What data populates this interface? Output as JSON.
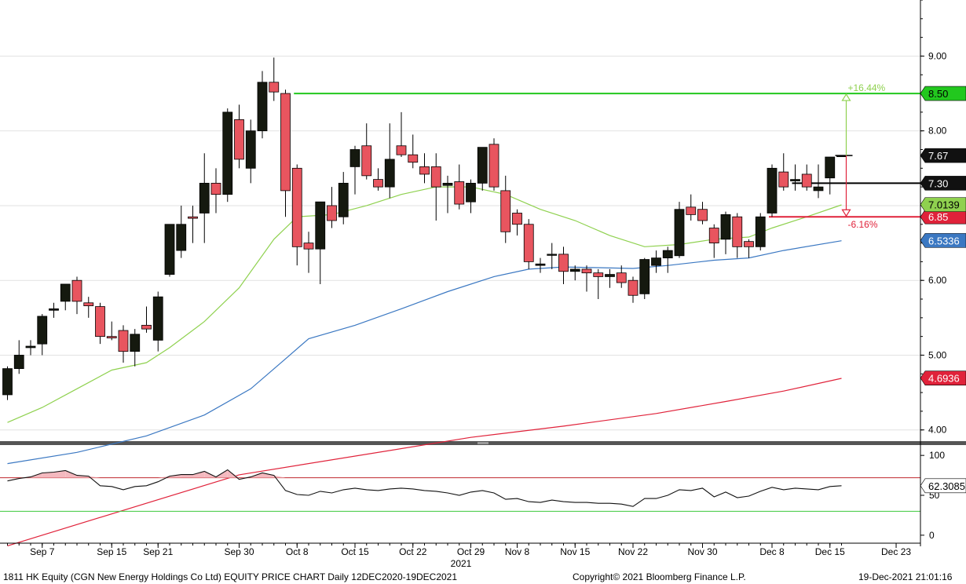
{
  "chart_data": {
    "type": "candlestick",
    "title": "1811 HK Equity (CGN New Energy Holdings Co Ltd) EQUITY PRICE CHART  Daily 12DEC2020-19DEC2021",
    "year_label": "2021",
    "x_labels": [
      "Sep 7",
      "Sep 15",
      "Sep 21",
      "Sep 30",
      "Oct 8",
      "Oct 15",
      "Oct 22",
      "Oct 29",
      "Nov 8",
      "Nov 15",
      "Nov 22",
      "Nov 30",
      "Dec 8",
      "Dec 15",
      "Dec 23"
    ],
    "x_label_dates": [
      "2021-09-07",
      "2021-09-15",
      "2021-09-21",
      "2021-09-30",
      "2021-10-08",
      "2021-10-15",
      "2021-10-22",
      "2021-10-29",
      "2021-11-08",
      "2021-11-15",
      "2021-11-22",
      "2021-11-30",
      "2021-12-08",
      "2021-12-15",
      "2021-12-23"
    ],
    "y_ticks": [
      4.0,
      5.0,
      6.0,
      7.0,
      8.0,
      9.0
    ],
    "ylim": [
      3.85,
      9.75
    ],
    "candles": [
      {
        "o": 4.47,
        "h": 4.85,
        "l": 4.4,
        "c": 4.82
      },
      {
        "o": 4.82,
        "h": 5.2,
        "l": 4.75,
        "c": 5.0
      },
      {
        "o": 5.1,
        "h": 5.2,
        "l": 5.0,
        "c": 5.12
      },
      {
        "o": 5.15,
        "h": 5.55,
        "l": 5.0,
        "c": 5.52
      },
      {
        "o": 5.6,
        "h": 5.7,
        "l": 5.5,
        "c": 5.62
      },
      {
        "o": 5.72,
        "h": 5.95,
        "l": 5.6,
        "c": 5.95
      },
      {
        "o": 6.0,
        "h": 6.05,
        "l": 5.55,
        "c": 5.72
      },
      {
        "o": 5.7,
        "h": 5.78,
        "l": 5.5,
        "c": 5.66
      },
      {
        "o": 5.65,
        "h": 5.7,
        "l": 5.15,
        "c": 5.25
      },
      {
        "o": 5.25,
        "h": 5.45,
        "l": 5.2,
        "c": 5.23
      },
      {
        "o": 5.33,
        "h": 5.4,
        "l": 4.9,
        "c": 5.05
      },
      {
        "o": 5.05,
        "h": 5.35,
        "l": 4.85,
        "c": 5.28
      },
      {
        "o": 5.4,
        "h": 5.65,
        "l": 5.3,
        "c": 5.35
      },
      {
        "o": 5.2,
        "h": 5.85,
        "l": 5.05,
        "c": 5.78
      },
      {
        "o": 6.08,
        "h": 6.75,
        "l": 6.05,
        "c": 6.75
      },
      {
        "o": 6.4,
        "h": 7.0,
        "l": 6.3,
        "c": 6.75
      },
      {
        "o": 6.85,
        "h": 7.0,
        "l": 6.5,
        "c": 6.83
      },
      {
        "o": 6.9,
        "h": 7.7,
        "l": 6.5,
        "c": 7.3
      },
      {
        "o": 7.3,
        "h": 7.5,
        "l": 6.9,
        "c": 7.15
      },
      {
        "o": 7.15,
        "h": 8.3,
        "l": 7.05,
        "c": 8.25
      },
      {
        "o": 8.15,
        "h": 8.35,
        "l": 7.5,
        "c": 7.62
      },
      {
        "o": 7.5,
        "h": 8.15,
        "l": 7.3,
        "c": 8.0
      },
      {
        "o": 8.0,
        "h": 8.8,
        "l": 7.9,
        "c": 8.65
      },
      {
        "o": 8.65,
        "h": 8.98,
        "l": 8.4,
        "c": 8.52
      },
      {
        "o": 8.5,
        "h": 8.55,
        "l": 6.85,
        "c": 7.2
      },
      {
        "o": 7.5,
        "h": 7.55,
        "l": 6.2,
        "c": 6.45
      },
      {
        "o": 6.5,
        "h": 6.65,
        "l": 6.1,
        "c": 6.42
      },
      {
        "o": 6.42,
        "h": 7.05,
        "l": 5.95,
        "c": 7.05
      },
      {
        "o": 7.0,
        "h": 7.25,
        "l": 6.7,
        "c": 6.8
      },
      {
        "o": 6.85,
        "h": 7.45,
        "l": 6.75,
        "c": 7.3
      },
      {
        "o": 7.52,
        "h": 7.8,
        "l": 7.15,
        "c": 7.75
      },
      {
        "o": 7.8,
        "h": 8.1,
        "l": 7.35,
        "c": 7.4
      },
      {
        "o": 7.35,
        "h": 7.5,
        "l": 7.2,
        "c": 7.25
      },
      {
        "o": 7.25,
        "h": 8.1,
        "l": 7.1,
        "c": 7.62
      },
      {
        "o": 7.8,
        "h": 8.25,
        "l": 7.65,
        "c": 7.68
      },
      {
        "o": 7.68,
        "h": 7.95,
        "l": 7.5,
        "c": 7.58
      },
      {
        "o": 7.52,
        "h": 7.7,
        "l": 7.3,
        "c": 7.42
      },
      {
        "o": 7.52,
        "h": 7.7,
        "l": 6.8,
        "c": 7.25
      },
      {
        "o": 7.27,
        "h": 7.4,
        "l": 6.9,
        "c": 7.3
      },
      {
        "o": 7.32,
        "h": 7.55,
        "l": 6.95,
        "c": 7.02
      },
      {
        "o": 7.05,
        "h": 7.35,
        "l": 6.9,
        "c": 7.3
      },
      {
        "o": 7.3,
        "h": 7.75,
        "l": 7.2,
        "c": 7.78
      },
      {
        "o": 7.82,
        "h": 7.9,
        "l": 7.2,
        "c": 7.25
      },
      {
        "o": 7.2,
        "h": 7.4,
        "l": 6.5,
        "c": 6.65
      },
      {
        "o": 6.9,
        "h": 6.95,
        "l": 6.6,
        "c": 6.75
      },
      {
        "o": 6.75,
        "h": 6.82,
        "l": 6.15,
        "c": 6.25
      },
      {
        "o": 6.2,
        "h": 6.3,
        "l": 6.1,
        "c": 6.22
      },
      {
        "o": 6.35,
        "h": 6.5,
        "l": 6.15,
        "c": 6.35
      },
      {
        "o": 6.35,
        "h": 6.45,
        "l": 5.95,
        "c": 6.12
      },
      {
        "o": 6.12,
        "h": 6.2,
        "l": 6.0,
        "c": 6.15
      },
      {
        "o": 6.15,
        "h": 6.2,
        "l": 5.85,
        "c": 6.1
      },
      {
        "o": 6.1,
        "h": 6.15,
        "l": 5.75,
        "c": 6.05
      },
      {
        "o": 6.05,
        "h": 6.15,
        "l": 5.9,
        "c": 6.08
      },
      {
        "o": 6.1,
        "h": 6.2,
        "l": 5.9,
        "c": 5.97
      },
      {
        "o": 6.0,
        "h": 6.05,
        "l": 5.7,
        "c": 5.8
      },
      {
        "o": 5.82,
        "h": 6.3,
        "l": 5.75,
        "c": 6.28
      },
      {
        "o": 6.2,
        "h": 6.4,
        "l": 6.1,
        "c": 6.3
      },
      {
        "o": 6.3,
        "h": 6.45,
        "l": 6.1,
        "c": 6.4
      },
      {
        "o": 6.33,
        "h": 7.05,
        "l": 6.3,
        "c": 6.95
      },
      {
        "o": 6.98,
        "h": 7.15,
        "l": 6.8,
        "c": 6.88
      },
      {
        "o": 6.95,
        "h": 7.05,
        "l": 6.75,
        "c": 6.8
      },
      {
        "o": 6.7,
        "h": 6.75,
        "l": 6.3,
        "c": 6.5
      },
      {
        "o": 6.55,
        "h": 6.92,
        "l": 6.35,
        "c": 6.88
      },
      {
        "o": 6.85,
        "h": 6.9,
        "l": 6.3,
        "c": 6.45
      },
      {
        "o": 6.52,
        "h": 6.55,
        "l": 6.3,
        "c": 6.45
      },
      {
        "o": 6.45,
        "h": 6.9,
        "l": 6.4,
        "c": 6.85
      },
      {
        "o": 6.9,
        "h": 7.55,
        "l": 6.85,
        "c": 7.5
      },
      {
        "o": 7.45,
        "h": 7.7,
        "l": 7.2,
        "c": 7.25
      },
      {
        "o": 7.33,
        "h": 7.55,
        "l": 7.2,
        "c": 7.35
      },
      {
        "o": 7.42,
        "h": 7.55,
        "l": 7.2,
        "c": 7.25
      },
      {
        "o": 7.2,
        "h": 7.55,
        "l": 7.1,
        "c": 7.25
      },
      {
        "o": 7.37,
        "h": 7.6,
        "l": 7.15,
        "c": 7.65
      },
      {
        "o": 7.67,
        "h": 7.67,
        "l": 7.67,
        "c": 7.67
      }
    ],
    "ma_series": [
      {
        "label": "7.0139",
        "color": "#8fd14f",
        "bg": "#8fd14f",
        "fg": "#000000",
        "points": [
          [
            0,
            4.1
          ],
          [
            3,
            4.3
          ],
          [
            6,
            4.55
          ],
          [
            9,
            4.8
          ],
          [
            12,
            4.9
          ],
          [
            14,
            5.1
          ],
          [
            17,
            5.45
          ],
          [
            20,
            5.9
          ],
          [
            23,
            6.55
          ],
          [
            25,
            6.85
          ],
          [
            28,
            6.88
          ],
          [
            31,
            7.0
          ],
          [
            34,
            7.15
          ],
          [
            37,
            7.25
          ],
          [
            40,
            7.25
          ],
          [
            43,
            7.15
          ],
          [
            46,
            6.95
          ],
          [
            49,
            6.8
          ],
          [
            52,
            6.6
          ],
          [
            55,
            6.45
          ],
          [
            58,
            6.48
          ],
          [
            61,
            6.55
          ],
          [
            64,
            6.58
          ],
          [
            66,
            6.7
          ],
          [
            69,
            6.85
          ],
          [
            72,
            7.01
          ]
        ]
      },
      {
        "label": "6.5336",
        "color": "#3b78c2",
        "bg": "#3b78c2",
        "fg": "#ffffff",
        "points": [
          [
            0,
            3.55
          ],
          [
            6,
            3.7
          ],
          [
            12,
            3.92
          ],
          [
            17,
            4.2
          ],
          [
            21,
            4.55
          ],
          [
            24,
            4.95
          ],
          [
            26,
            5.22
          ],
          [
            30,
            5.4
          ],
          [
            34,
            5.62
          ],
          [
            38,
            5.85
          ],
          [
            42,
            6.05
          ],
          [
            45,
            6.15
          ],
          [
            48,
            6.18
          ],
          [
            51,
            6.17
          ],
          [
            54,
            6.16
          ],
          [
            57,
            6.2
          ],
          [
            61,
            6.27
          ],
          [
            64,
            6.3
          ],
          [
            67,
            6.4
          ],
          [
            72,
            6.53
          ]
        ]
      },
      {
        "label": "4.6936",
        "color": "#e0223a",
        "bg": "#e0223a",
        "fg": "#ffffff",
        "points": [
          [
            0,
            2.45
          ],
          [
            20,
            3.4
          ],
          [
            40,
            3.9
          ],
          [
            48,
            4.05
          ],
          [
            56,
            4.22
          ],
          [
            62,
            4.38
          ],
          [
            67,
            4.52
          ],
          [
            72,
            4.69
          ]
        ]
      }
    ],
    "hlines": [
      {
        "value": 8.5,
        "label": "8.50",
        "color": "#22c81e",
        "bg": "#22c81e",
        "fg": "#000000",
        "from": 25
      },
      {
        "value": 7.3,
        "label": "7.30",
        "color": "#000000",
        "bg": "#111111",
        "fg": "#ffffff",
        "from": 68
      },
      {
        "value": 6.85,
        "label": "6.85",
        "color": "#e0223a",
        "bg": "#e0223a",
        "fg": "#ffffff",
        "from": 66
      }
    ],
    "last_price": {
      "value": 7.67,
      "label": "7.67",
      "bg": "#111111",
      "fg": "#ffffff"
    },
    "annotations": {
      "up": "+16.44%",
      "down": "-6.16%",
      "up_color": "#8fd14f",
      "down_color": "#e0223a"
    },
    "indicator": {
      "y_ticks": [
        0,
        50,
        100
      ],
      "ylim": [
        -10,
        110
      ],
      "upper_band": 72,
      "lower_band": 30,
      "last_label": "62.3085",
      "values": [
        68,
        71,
        73,
        78,
        79,
        81,
        75,
        74,
        62,
        61,
        57,
        61,
        62,
        67,
        74,
        76,
        76,
        80,
        73,
        82,
        70,
        73,
        78,
        75,
        56,
        51,
        50,
        55,
        53,
        57,
        59,
        57,
        56,
        58,
        59,
        58,
        56,
        55,
        53,
        50,
        54,
        56,
        53,
        45,
        46,
        42,
        41,
        44,
        42,
        41,
        41,
        40,
        40,
        39,
        36,
        46,
        46,
        50,
        57,
        56,
        59,
        48,
        54,
        47,
        49,
        55,
        60,
        57,
        59,
        58,
        57,
        61,
        62
      ]
    }
  },
  "footer": {
    "left": "1811 HK Equity (CGN New Energy Holdings Co Ltd) EQUITY PRICE CHART  Daily 12DEC2020-19DEC2021",
    "center": "Copyright© 2021 Bloomberg Finance L.P.",
    "right": "19-Dec-2021 21:01:16"
  }
}
